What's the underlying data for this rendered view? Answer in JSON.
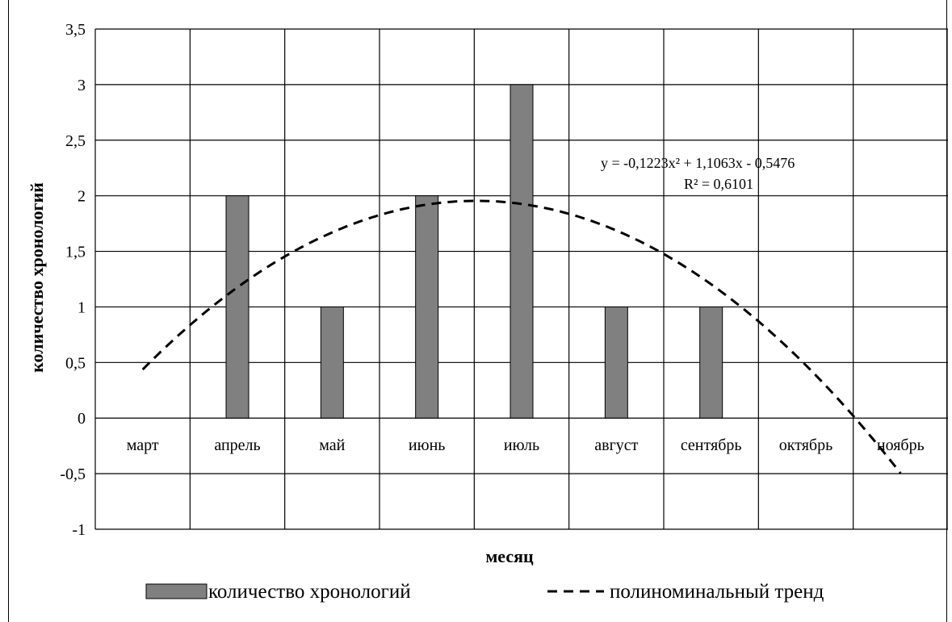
{
  "chart_data": {
    "type": "bar",
    "title": "",
    "xlabel": "месяц",
    "ylabel": "количество хронологий",
    "categories": [
      "март",
      "апрель",
      "май",
      "июнь",
      "июль",
      "август",
      "сентябрь",
      "октябрь",
      "ноябрь"
    ],
    "series": [
      {
        "name": "количество хронологий",
        "type": "bar",
        "color": "#808080",
        "values": [
          0,
          2,
          1,
          2,
          3,
          1,
          1,
          0,
          0
        ]
      },
      {
        "name": "полиноминальный тренд",
        "type": "line",
        "style": "dashed",
        "color": "#000000",
        "coefficients": [
          -0.1223,
          1.1063,
          -0.5476
        ]
      }
    ],
    "ylim": [
      -1,
      3.5
    ],
    "yticks": [
      -1,
      -0.5,
      0,
      0.5,
      1,
      1.5,
      2,
      2.5,
      3,
      3.5
    ],
    "ytick_labels": [
      "-1",
      "-0,5",
      "0",
      "0,5",
      "1",
      "1,5",
      "2",
      "2,5",
      "3",
      "3,5"
    ],
    "grid": true,
    "legend": "bottom",
    "annotations": {
      "equation": "y = -0,1223x² + 1,1063x - 0,5476",
      "r_squared": "R² = 0,6101"
    }
  }
}
